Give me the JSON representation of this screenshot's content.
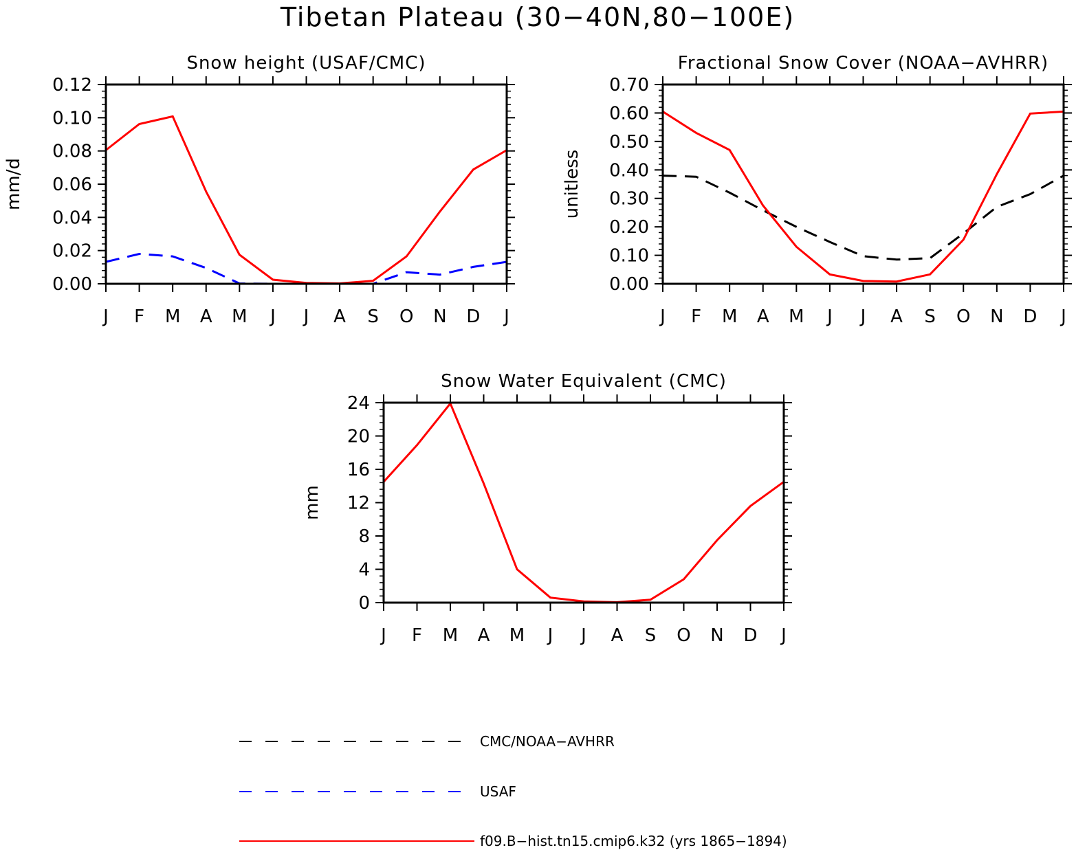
{
  "title": "Tibetan Plateau (30−40N,80−100E)",
  "legend": [
    {
      "label": "CMC/NOAA−AVHRR",
      "color": "#000000",
      "dash": "dash"
    },
    {
      "label": "USAF",
      "color": "#0000ff",
      "dash": "dash"
    },
    {
      "label": "f09.B−hist.tn15.cmip6.k32 (yrs 1865−1894)",
      "color": "#ff0000",
      "dash": "solid"
    }
  ],
  "chart_data": [
    {
      "type": "line",
      "title": "Snow height (USAF/CMC)",
      "xlabel": "",
      "ylabel": "mm/d",
      "categories": [
        "J",
        "F",
        "M",
        "A",
        "M",
        "J",
        "J",
        "A",
        "S",
        "O",
        "N",
        "D",
        "J"
      ],
      "ylim": [
        0,
        0.12
      ],
      "yticks": [
        "0.00",
        "0.02",
        "0.04",
        "0.06",
        "0.08",
        "0.10",
        "0.12"
      ],
      "series": [
        {
          "name": "CMC/NOAA−AVHRR",
          "color": "#000000",
          "dash": "dash",
          "values": [
            0,
            0,
            0,
            0,
            0,
            0,
            0,
            0,
            0,
            0,
            0,
            0,
            0
          ]
        },
        {
          "name": "USAF",
          "color": "#0000ff",
          "dash": "dash",
          "values": [
            0.0132,
            0.018,
            0.0165,
            0.0095,
            0.0002,
            0,
            0,
            0,
            0,
            0.007,
            0.0055,
            0.0102,
            0.0132
          ]
        },
        {
          "name": "f09.B−hist.tn15.cmip6.k32 (yrs 1865−1894)",
          "color": "#ff0000",
          "dash": "solid",
          "values": [
            0.0805,
            0.0962,
            0.1008,
            0.0555,
            0.0175,
            0.0025,
            0.0005,
            0.0002,
            0.0018,
            0.0165,
            0.0435,
            0.0688,
            0.0805
          ]
        }
      ]
    },
    {
      "type": "line",
      "title": "Fractional Snow Cover (NOAA−AVHRR)",
      "xlabel": "",
      "ylabel": "unitless",
      "categories": [
        "J",
        "F",
        "M",
        "A",
        "M",
        "J",
        "J",
        "A",
        "S",
        "O",
        "N",
        "D",
        "J"
      ],
      "ylim": [
        0,
        0.7
      ],
      "yticks": [
        "0.00",
        "0.10",
        "0.20",
        "0.30",
        "0.40",
        "0.50",
        "0.60",
        "0.70"
      ],
      "series": [
        {
          "name": "CMC/NOAA−AVHRR",
          "color": "#000000",
          "dash": "dash",
          "values": [
            0.38,
            0.376,
            0.32,
            0.258,
            0.2,
            0.147,
            0.097,
            0.085,
            0.09,
            0.177,
            0.27,
            0.315,
            0.38
          ]
        },
        {
          "name": "f09.B−hist.tn15.cmip6.k32 (yrs 1865−1894)",
          "color": "#ff0000",
          "dash": "solid",
          "values": [
            0.605,
            0.53,
            0.47,
            0.275,
            0.13,
            0.033,
            0.01,
            0.008,
            0.033,
            0.155,
            0.385,
            0.598,
            0.605
          ]
        }
      ]
    },
    {
      "type": "line",
      "title": "Snow Water Equivalent (CMC)",
      "xlabel": "",
      "ylabel": "mm",
      "categories": [
        "J",
        "F",
        "M",
        "A",
        "M",
        "J",
        "J",
        "A",
        "S",
        "O",
        "N",
        "D",
        "J"
      ],
      "ylim": [
        0,
        24
      ],
      "yticks": [
        "0",
        "4",
        "8",
        "12",
        "16",
        "20",
        "24"
      ],
      "series": [
        {
          "name": "CMC/NOAA−AVHRR",
          "color": "#000000",
          "dash": "dash",
          "values": [
            0,
            0,
            0,
            0,
            0,
            0,
            0,
            0,
            0,
            0,
            0,
            0,
            0
          ]
        },
        {
          "name": "f09.B−hist.tn15.cmip6.k32 (yrs 1865−1894)",
          "color": "#ff0000",
          "dash": "solid",
          "values": [
            14.5,
            18.9,
            23.9,
            14.3,
            4.0,
            0.6,
            0.15,
            0.05,
            0.35,
            2.8,
            7.5,
            11.6,
            14.5
          ]
        }
      ]
    }
  ]
}
